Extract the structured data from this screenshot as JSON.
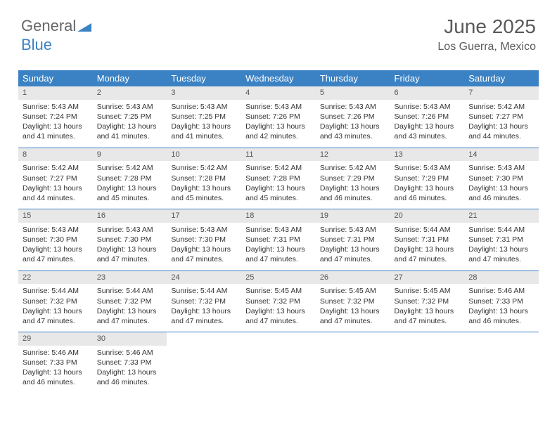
{
  "logo": {
    "text_gray": "General",
    "text_blue": "Blue"
  },
  "header": {
    "title": "June 2025",
    "location": "Los Guerra, Mexico"
  },
  "calendar": {
    "type": "table",
    "columns": [
      "Sunday",
      "Monday",
      "Tuesday",
      "Wednesday",
      "Thursday",
      "Friday",
      "Saturday"
    ],
    "header_bg": "#3b82c4",
    "header_text_color": "#ffffff",
    "daynum_bg": "#e8e8e8",
    "border_color": "#3b82c4",
    "cell_fontsize": 10.5,
    "header_fontsize": 13,
    "weeks": [
      [
        {
          "n": "1",
          "sr": "5:43 AM",
          "ss": "7:24 PM",
          "dl": "13 hours and 41 minutes."
        },
        {
          "n": "2",
          "sr": "5:43 AM",
          "ss": "7:25 PM",
          "dl": "13 hours and 41 minutes."
        },
        {
          "n": "3",
          "sr": "5:43 AM",
          "ss": "7:25 PM",
          "dl": "13 hours and 41 minutes."
        },
        {
          "n": "4",
          "sr": "5:43 AM",
          "ss": "7:26 PM",
          "dl": "13 hours and 42 minutes."
        },
        {
          "n": "5",
          "sr": "5:43 AM",
          "ss": "7:26 PM",
          "dl": "13 hours and 43 minutes."
        },
        {
          "n": "6",
          "sr": "5:43 AM",
          "ss": "7:26 PM",
          "dl": "13 hours and 43 minutes."
        },
        {
          "n": "7",
          "sr": "5:42 AM",
          "ss": "7:27 PM",
          "dl": "13 hours and 44 minutes."
        }
      ],
      [
        {
          "n": "8",
          "sr": "5:42 AM",
          "ss": "7:27 PM",
          "dl": "13 hours and 44 minutes."
        },
        {
          "n": "9",
          "sr": "5:42 AM",
          "ss": "7:28 PM",
          "dl": "13 hours and 45 minutes."
        },
        {
          "n": "10",
          "sr": "5:42 AM",
          "ss": "7:28 PM",
          "dl": "13 hours and 45 minutes."
        },
        {
          "n": "11",
          "sr": "5:42 AM",
          "ss": "7:28 PM",
          "dl": "13 hours and 45 minutes."
        },
        {
          "n": "12",
          "sr": "5:42 AM",
          "ss": "7:29 PM",
          "dl": "13 hours and 46 minutes."
        },
        {
          "n": "13",
          "sr": "5:43 AM",
          "ss": "7:29 PM",
          "dl": "13 hours and 46 minutes."
        },
        {
          "n": "14",
          "sr": "5:43 AM",
          "ss": "7:30 PM",
          "dl": "13 hours and 46 minutes."
        }
      ],
      [
        {
          "n": "15",
          "sr": "5:43 AM",
          "ss": "7:30 PM",
          "dl": "13 hours and 47 minutes."
        },
        {
          "n": "16",
          "sr": "5:43 AM",
          "ss": "7:30 PM",
          "dl": "13 hours and 47 minutes."
        },
        {
          "n": "17",
          "sr": "5:43 AM",
          "ss": "7:30 PM",
          "dl": "13 hours and 47 minutes."
        },
        {
          "n": "18",
          "sr": "5:43 AM",
          "ss": "7:31 PM",
          "dl": "13 hours and 47 minutes."
        },
        {
          "n": "19",
          "sr": "5:43 AM",
          "ss": "7:31 PM",
          "dl": "13 hours and 47 minutes."
        },
        {
          "n": "20",
          "sr": "5:44 AM",
          "ss": "7:31 PM",
          "dl": "13 hours and 47 minutes."
        },
        {
          "n": "21",
          "sr": "5:44 AM",
          "ss": "7:31 PM",
          "dl": "13 hours and 47 minutes."
        }
      ],
      [
        {
          "n": "22",
          "sr": "5:44 AM",
          "ss": "7:32 PM",
          "dl": "13 hours and 47 minutes."
        },
        {
          "n": "23",
          "sr": "5:44 AM",
          "ss": "7:32 PM",
          "dl": "13 hours and 47 minutes."
        },
        {
          "n": "24",
          "sr": "5:44 AM",
          "ss": "7:32 PM",
          "dl": "13 hours and 47 minutes."
        },
        {
          "n": "25",
          "sr": "5:45 AM",
          "ss": "7:32 PM",
          "dl": "13 hours and 47 minutes."
        },
        {
          "n": "26",
          "sr": "5:45 AM",
          "ss": "7:32 PM",
          "dl": "13 hours and 47 minutes."
        },
        {
          "n": "27",
          "sr": "5:45 AM",
          "ss": "7:32 PM",
          "dl": "13 hours and 47 minutes."
        },
        {
          "n": "28",
          "sr": "5:46 AM",
          "ss": "7:33 PM",
          "dl": "13 hours and 46 minutes."
        }
      ],
      [
        {
          "n": "29",
          "sr": "5:46 AM",
          "ss": "7:33 PM",
          "dl": "13 hours and 46 minutes."
        },
        {
          "n": "30",
          "sr": "5:46 AM",
          "ss": "7:33 PM",
          "dl": "13 hours and 46 minutes."
        },
        null,
        null,
        null,
        null,
        null
      ]
    ],
    "labels": {
      "sunrise": "Sunrise:",
      "sunset": "Sunset:",
      "daylight": "Daylight:"
    }
  }
}
